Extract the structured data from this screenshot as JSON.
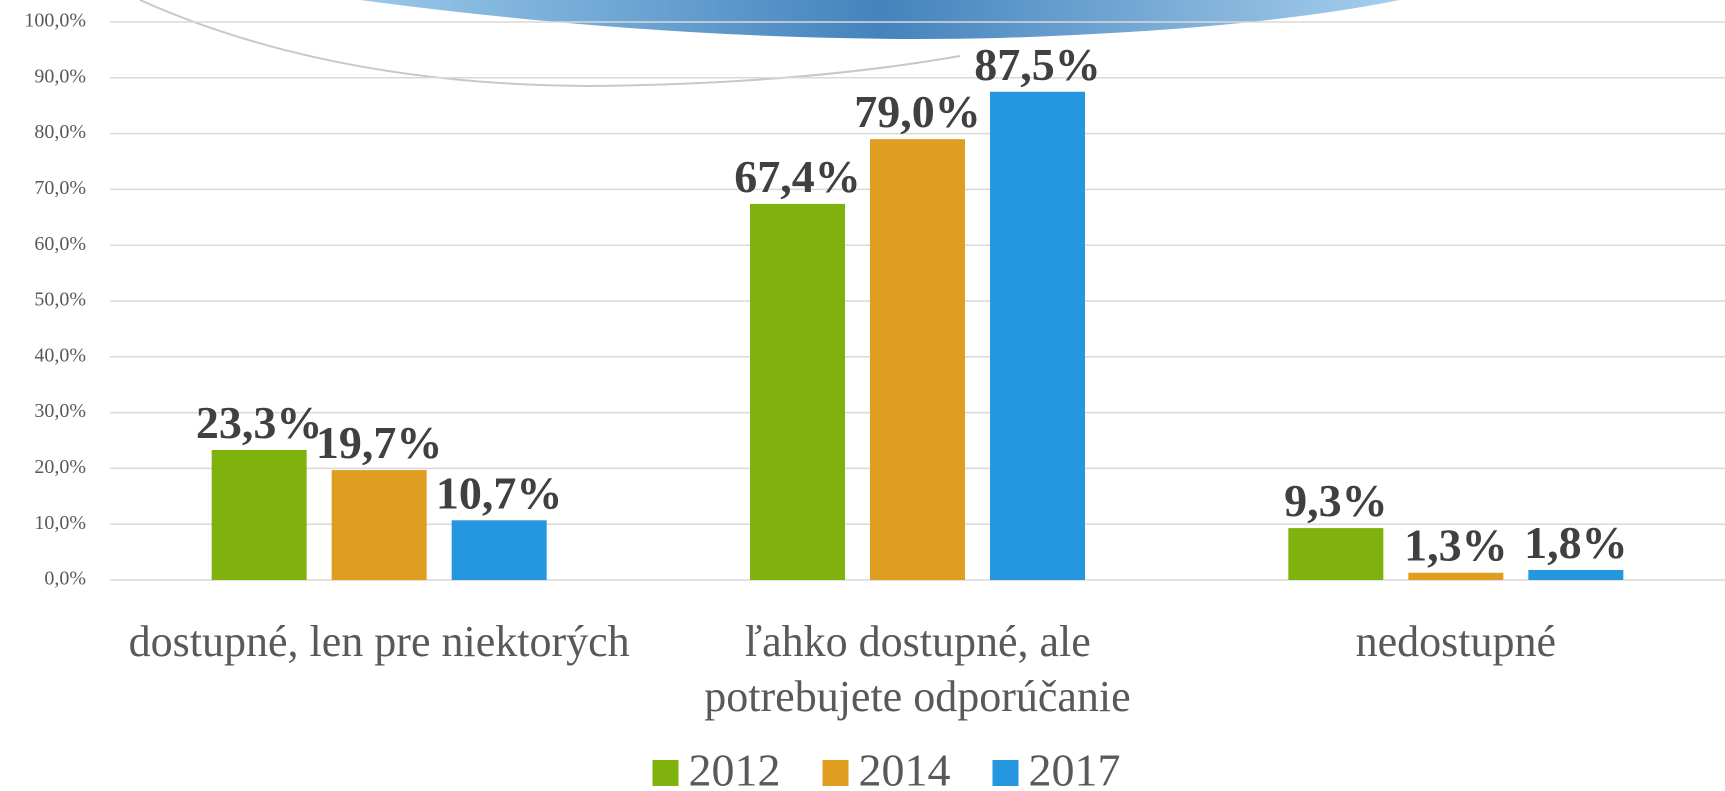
{
  "chart_data": {
    "type": "bar",
    "categories": [
      "dostupné, len pre niektorých",
      "ľahko dostupné, ale potrebujete odporúčanie",
      "nedostupné"
    ],
    "series": [
      {
        "name": "2012",
        "color": "#7fb20d",
        "values": [
          23.3,
          67.4,
          9.3
        ],
        "value_labels": [
          "23,3%",
          "67,4%",
          "9,3%"
        ]
      },
      {
        "name": "2014",
        "color": "#e09e21",
        "values": [
          19.7,
          79.0,
          1.3
        ],
        "value_labels": [
          "19,7%",
          "79,0%",
          "1,3%"
        ]
      },
      {
        "name": "2017",
        "color": "#2596e0",
        "values": [
          10.7,
          87.5,
          1.8
        ],
        "value_labels": [
          "10,7%",
          "87,5%",
          "1,8%"
        ]
      }
    ],
    "ylim": [
      0,
      100
    ],
    "yticks": [
      {
        "value": 0,
        "label": "0,0%"
      },
      {
        "value": 10,
        "label": "10,0%"
      },
      {
        "value": 20,
        "label": "20,0%"
      },
      {
        "value": 30,
        "label": "30,0%"
      },
      {
        "value": 40,
        "label": "40,0%"
      },
      {
        "value": 50,
        "label": "50,0%"
      },
      {
        "value": 60,
        "label": "60,0%"
      },
      {
        "value": 70,
        "label": "70,0%"
      },
      {
        "value": 80,
        "label": "80,0%"
      },
      {
        "value": 90,
        "label": "90,0%"
      },
      {
        "value": 100,
        "label": "100,0%"
      }
    ],
    "grid": true,
    "legend": "bottom"
  }
}
